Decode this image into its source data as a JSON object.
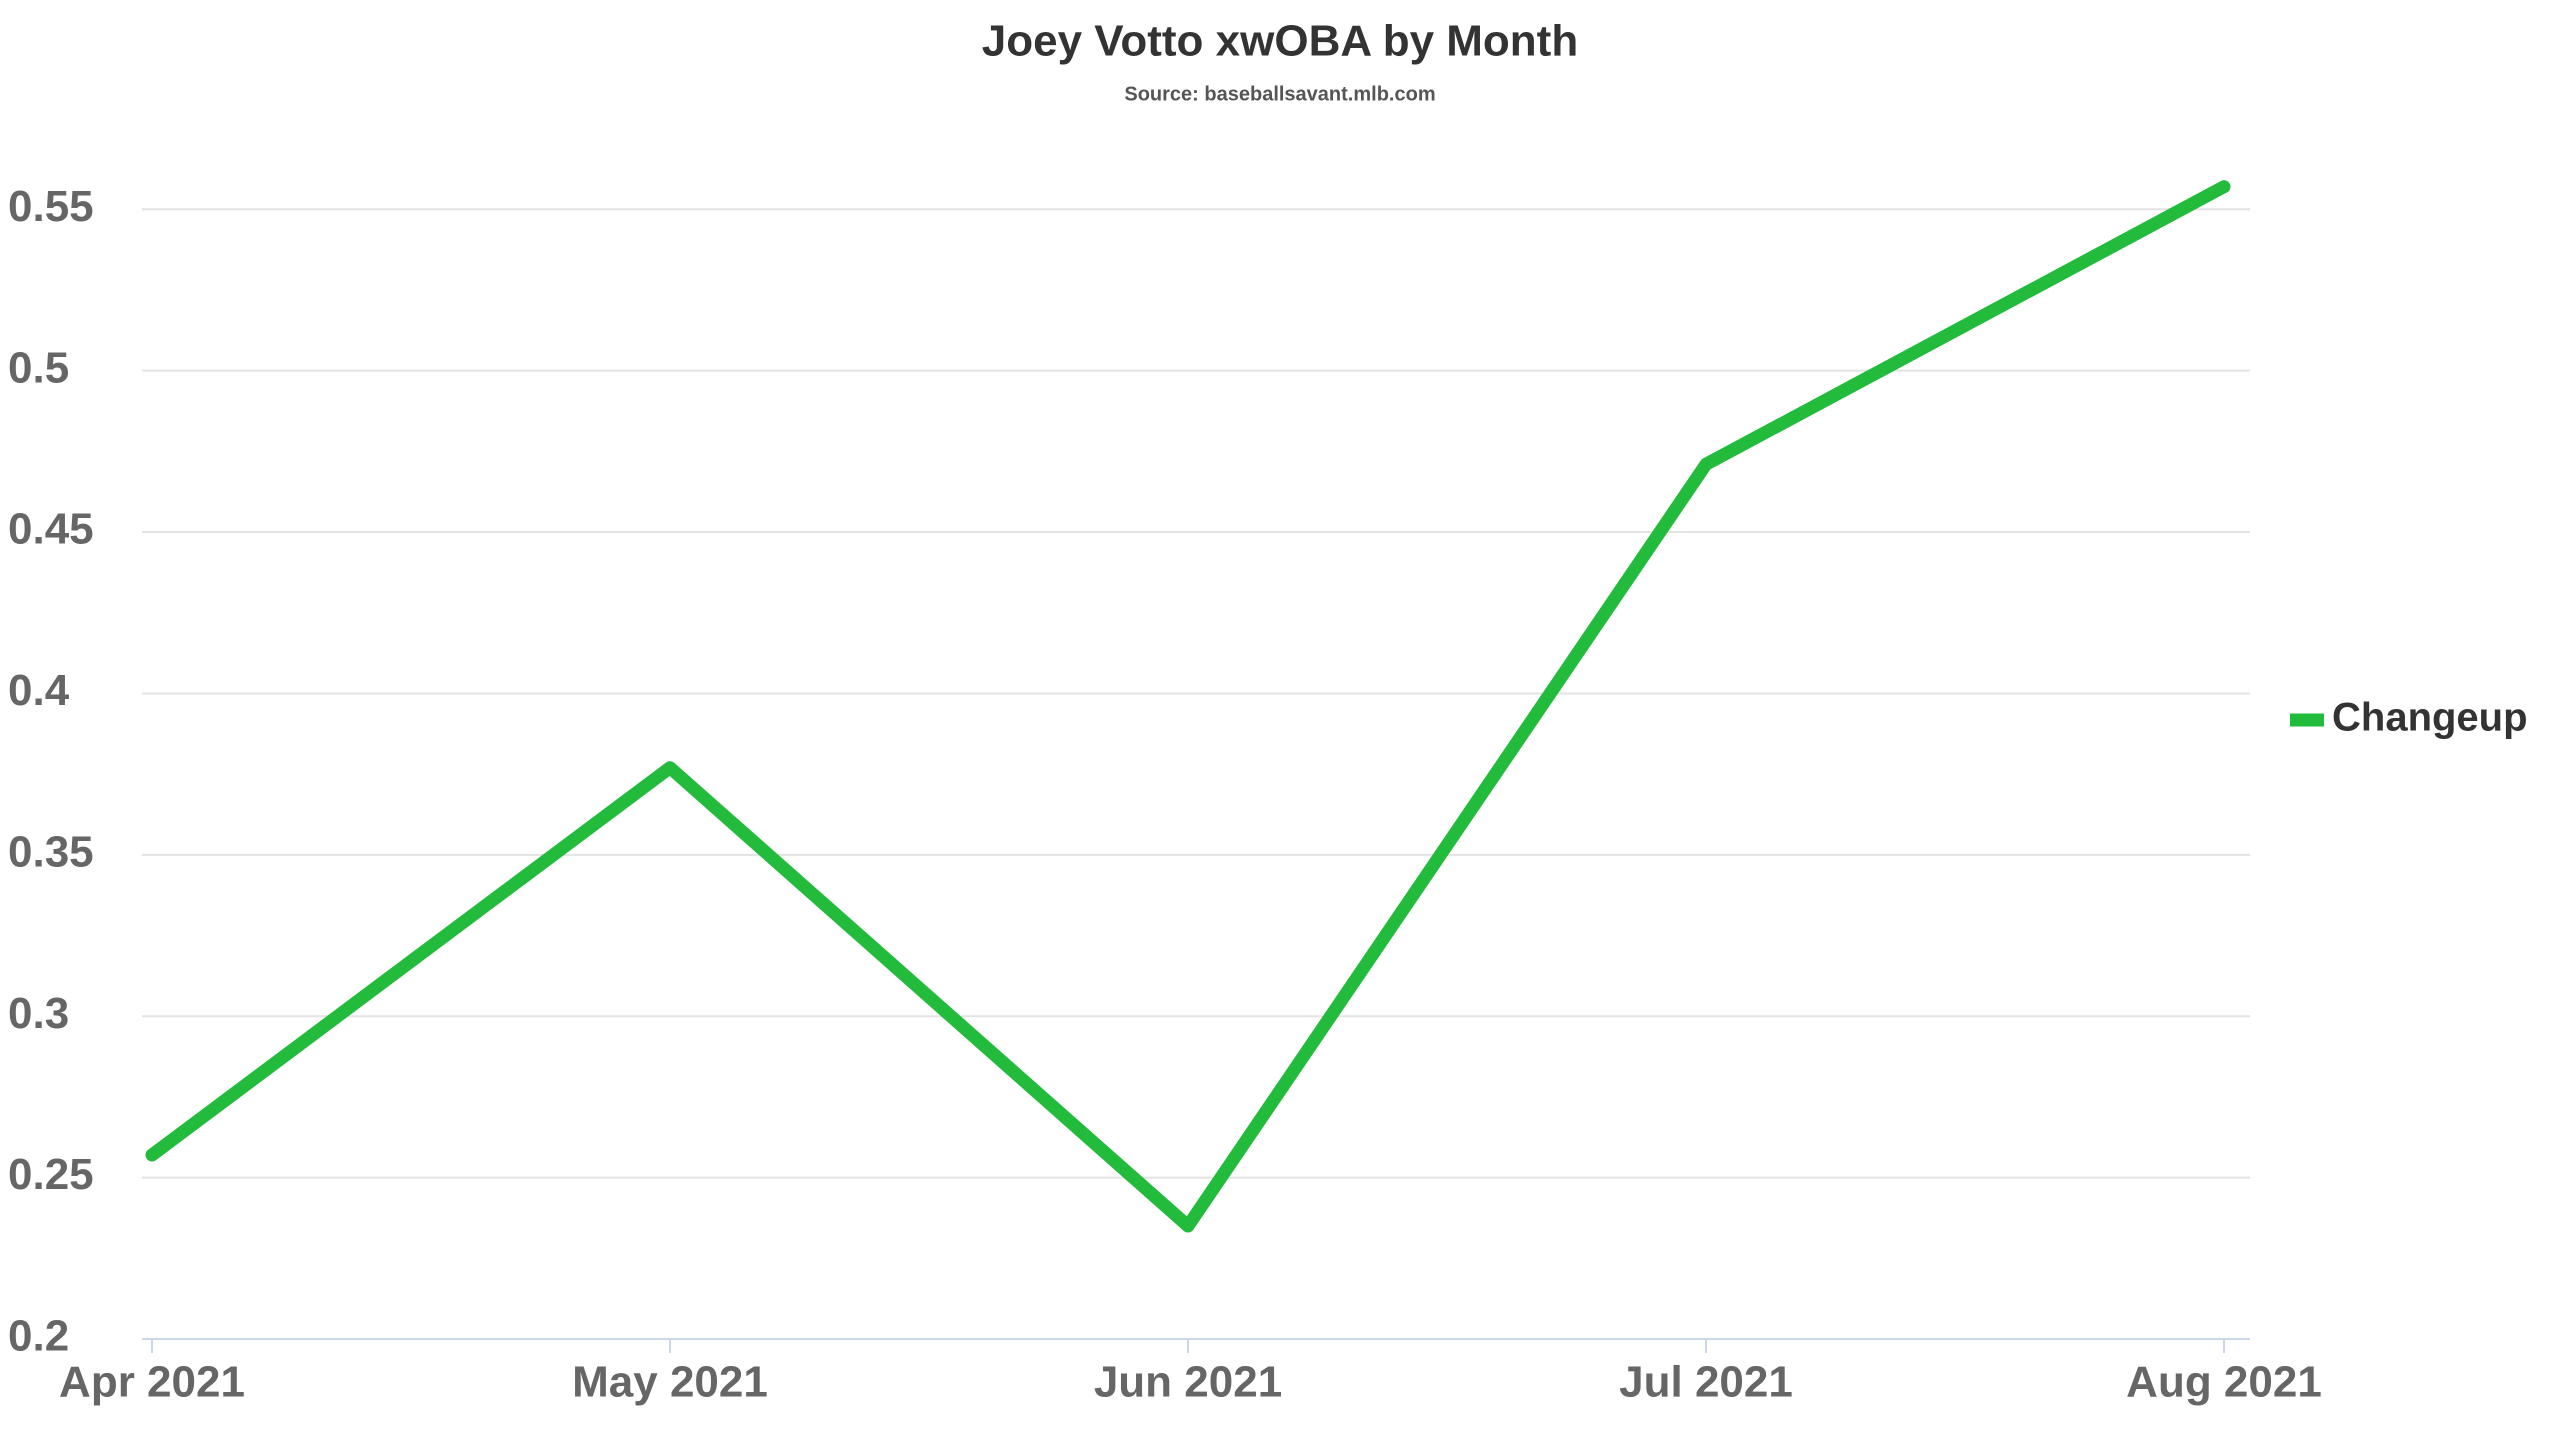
{
  "chart_data": {
    "type": "line",
    "title": "Joey Votto xwOBA by Month",
    "subtitle": "Source: baseballsavant.mlb.com",
    "categories": [
      "Apr 2021",
      "May 2021",
      "Jun 2021",
      "Jul 2021",
      "Aug 2021"
    ],
    "series": [
      {
        "name": "Changeup",
        "color": "#22bb3c",
        "values": [
          0.257,
          0.377,
          0.235,
          0.471,
          0.557
        ]
      }
    ],
    "ylim": [
      0.2,
      0.56
    ],
    "yticks": [
      0.2,
      0.25,
      0.3,
      0.35,
      0.4,
      0.45,
      0.5,
      0.55
    ],
    "grid": true,
    "legend": "right"
  }
}
